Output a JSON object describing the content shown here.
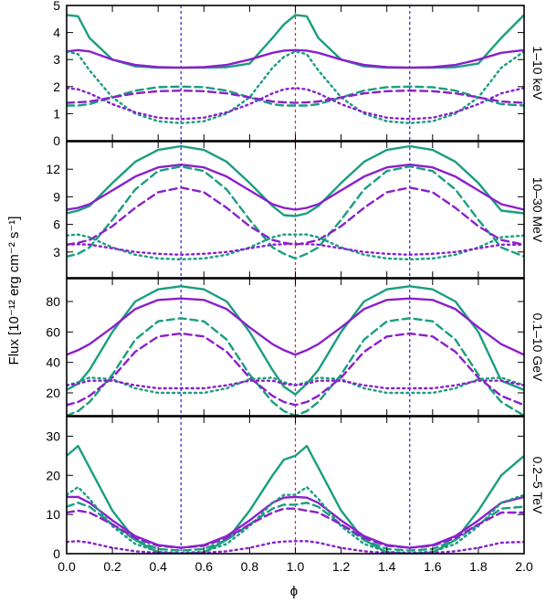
{
  "figure": {
    "ylabel": "Flux [10⁻¹² erg cm⁻² s⁻¹]",
    "xlabel": "ϕ"
  },
  "colors": {
    "green": "#1a9e7f",
    "purple": "#8b20cc",
    "blue_marker": "#2020e0",
    "red_marker": "#e02020"
  },
  "chart_data": [
    {
      "type": "line",
      "panel_label": "1–10 keV",
      "xlim": [
        0,
        2
      ],
      "ylim": [
        0,
        5
      ],
      "yticks": [
        0,
        1,
        2,
        3,
        4,
        5
      ],
      "xticks": [
        0.0,
        0.2,
        0.4,
        0.6,
        0.8,
        1.0,
        1.2,
        1.4,
        1.6,
        1.8,
        2.0
      ],
      "xtick_labels": [],
      "vlines": [
        {
          "x": 0.5,
          "color": "blue"
        },
        {
          "x": 1.0,
          "color": "red"
        },
        {
          "x": 1.5,
          "color": "blue"
        }
      ],
      "x": [
        0.0,
        0.05,
        0.1,
        0.2,
        0.3,
        0.4,
        0.5,
        0.6,
        0.7,
        0.8,
        0.9,
        0.95,
        1.0,
        1.05,
        1.1,
        1.2,
        1.3,
        1.4,
        1.5,
        1.6,
        1.7,
        1.8,
        1.9,
        2.0
      ],
      "series": [
        {
          "color": "green",
          "style": "solid",
          "values": [
            4.65,
            4.6,
            3.8,
            3.0,
            2.75,
            2.7,
            2.7,
            2.7,
            2.72,
            2.85,
            3.8,
            4.3,
            4.65,
            4.6,
            3.8,
            3.0,
            2.75,
            2.7,
            2.7,
            2.7,
            2.72,
            2.85,
            3.8,
            4.65
          ]
        },
        {
          "color": "purple",
          "style": "solid",
          "values": [
            3.3,
            3.35,
            3.3,
            3.0,
            2.8,
            2.72,
            2.7,
            2.72,
            2.8,
            3.0,
            3.25,
            3.33,
            3.35,
            3.33,
            3.25,
            3.0,
            2.8,
            2.72,
            2.7,
            2.72,
            2.8,
            3.0,
            3.25,
            3.35
          ]
        },
        {
          "color": "green",
          "style": "dotted",
          "values": [
            3.3,
            3.2,
            2.6,
            1.6,
            1.0,
            0.72,
            0.65,
            0.72,
            1.0,
            1.6,
            2.7,
            3.1,
            3.3,
            3.2,
            2.6,
            1.6,
            1.0,
            0.72,
            0.65,
            0.72,
            1.0,
            1.6,
            2.7,
            3.3
          ]
        },
        {
          "color": "purple",
          "style": "dotted",
          "values": [
            1.95,
            1.9,
            1.75,
            1.35,
            1.05,
            0.85,
            0.8,
            0.85,
            1.05,
            1.35,
            1.75,
            1.9,
            1.95,
            1.9,
            1.75,
            1.35,
            1.05,
            0.85,
            0.8,
            0.85,
            1.05,
            1.35,
            1.75,
            1.95
          ]
        },
        {
          "color": "green",
          "style": "dashed",
          "values": [
            1.3,
            1.3,
            1.35,
            1.6,
            1.85,
            1.98,
            2.0,
            1.98,
            1.85,
            1.6,
            1.35,
            1.3,
            1.3,
            1.3,
            1.35,
            1.6,
            1.85,
            1.98,
            2.0,
            1.98,
            1.85,
            1.6,
            1.35,
            1.3
          ]
        },
        {
          "color": "purple",
          "style": "dashed",
          "values": [
            1.4,
            1.42,
            1.45,
            1.6,
            1.75,
            1.83,
            1.85,
            1.83,
            1.75,
            1.6,
            1.45,
            1.42,
            1.4,
            1.42,
            1.45,
            1.6,
            1.75,
            1.83,
            1.85,
            1.83,
            1.75,
            1.6,
            1.45,
            1.4
          ]
        }
      ]
    },
    {
      "type": "line",
      "panel_label": "10–30 MeV",
      "xlim": [
        0,
        2
      ],
      "ylim": [
        0.2,
        15
      ],
      "yticks": [
        3,
        6,
        9,
        12
      ],
      "xticks": [
        0.0,
        0.2,
        0.4,
        0.6,
        0.8,
        1.0,
        1.2,
        1.4,
        1.6,
        1.8,
        2.0
      ],
      "xtick_labels": [],
      "vlines": [
        {
          "x": 0.5,
          "color": "blue"
        },
        {
          "x": 1.0,
          "color": "red"
        },
        {
          "x": 1.5,
          "color": "blue"
        }
      ],
      "x": [
        0.0,
        0.05,
        0.1,
        0.2,
        0.3,
        0.4,
        0.5,
        0.6,
        0.7,
        0.8,
        0.9,
        0.95,
        1.0,
        1.05,
        1.1,
        1.2,
        1.3,
        1.4,
        1.5,
        1.6,
        1.7,
        1.8,
        1.9,
        2.0
      ],
      "series": [
        {
          "color": "green",
          "style": "solid",
          "values": [
            7.2,
            7.5,
            8.0,
            10.5,
            12.8,
            14.1,
            14.5,
            14.1,
            12.8,
            10.5,
            8.0,
            7.0,
            6.9,
            7.2,
            8.0,
            10.5,
            12.8,
            14.1,
            14.5,
            14.1,
            12.8,
            10.5,
            7.5,
            7.2
          ]
        },
        {
          "color": "purple",
          "style": "solid",
          "values": [
            7.6,
            7.8,
            8.2,
            9.7,
            11.2,
            12.2,
            12.5,
            12.2,
            11.2,
            9.7,
            8.2,
            7.8,
            7.6,
            7.8,
            8.2,
            9.7,
            11.2,
            12.2,
            12.5,
            12.2,
            11.2,
            9.7,
            8.2,
            7.6
          ]
        },
        {
          "color": "green",
          "style": "dashed",
          "values": [
            2.5,
            2.8,
            3.5,
            6.5,
            9.8,
            11.8,
            12.3,
            11.8,
            9.8,
            6.5,
            3.5,
            2.8,
            2.3,
            2.8,
            3.5,
            6.5,
            9.8,
            11.8,
            12.3,
            11.8,
            9.8,
            6.5,
            3.5,
            2.5
          ]
        },
        {
          "color": "purple",
          "style": "dashed",
          "values": [
            3.8,
            4.0,
            4.3,
            5.8,
            7.8,
            9.5,
            10.0,
            9.5,
            7.8,
            5.8,
            4.3,
            4.0,
            3.8,
            4.0,
            4.3,
            5.8,
            7.8,
            9.5,
            10.0,
            9.5,
            7.8,
            5.8,
            4.3,
            3.8
          ]
        },
        {
          "color": "green",
          "style": "dotted",
          "values": [
            4.8,
            4.9,
            4.6,
            3.5,
            2.7,
            2.3,
            2.2,
            2.3,
            2.7,
            3.5,
            4.6,
            4.9,
            4.9,
            4.9,
            4.6,
            3.5,
            2.7,
            2.3,
            2.2,
            2.3,
            2.7,
            3.5,
            4.6,
            4.8
          ]
        },
        {
          "color": "purple",
          "style": "dotted",
          "values": [
            3.8,
            3.85,
            3.8,
            3.4,
            3.0,
            2.8,
            2.7,
            2.8,
            3.0,
            3.4,
            3.8,
            3.85,
            3.9,
            3.85,
            3.8,
            3.4,
            3.0,
            2.8,
            2.7,
            2.8,
            3.0,
            3.4,
            3.8,
            3.8
          ]
        }
      ]
    },
    {
      "type": "line",
      "panel_label": "0.1–10 GeV",
      "xlim": [
        0,
        2
      ],
      "ylim": [
        5,
        95
      ],
      "yticks": [
        20,
        40,
        60,
        80
      ],
      "xticks": [
        0.0,
        0.2,
        0.4,
        0.6,
        0.8,
        1.0,
        1.2,
        1.4,
        1.6,
        1.8,
        2.0
      ],
      "xtick_labels": [],
      "vlines": [
        {
          "x": 0.5,
          "color": "blue"
        },
        {
          "x": 1.0,
          "color": "red"
        },
        {
          "x": 1.5,
          "color": "blue"
        }
      ],
      "x": [
        0.0,
        0.05,
        0.1,
        0.2,
        0.3,
        0.4,
        0.5,
        0.6,
        0.7,
        0.8,
        0.9,
        0.95,
        1.0,
        1.05,
        1.1,
        1.2,
        1.3,
        1.4,
        1.5,
        1.6,
        1.7,
        1.8,
        1.9,
        2.0
      ],
      "series": [
        {
          "color": "green",
          "style": "solid",
          "values": [
            22,
            26,
            35,
            60,
            80,
            88,
            90,
            88,
            80,
            60,
            35,
            24,
            19,
            26,
            35,
            60,
            80,
            88,
            90,
            88,
            80,
            60,
            28,
            22
          ]
        },
        {
          "color": "purple",
          "style": "solid",
          "values": [
            45,
            48,
            52,
            63,
            75,
            81,
            82,
            81,
            75,
            63,
            52,
            48,
            45,
            48,
            52,
            63,
            75,
            81,
            82,
            81,
            75,
            63,
            52,
            45
          ]
        },
        {
          "color": "green",
          "style": "dashed",
          "values": [
            5,
            8,
            14,
            32,
            55,
            67,
            69,
            67,
            55,
            32,
            14,
            8,
            5,
            8,
            14,
            32,
            55,
            67,
            69,
            67,
            55,
            32,
            14,
            5
          ]
        },
        {
          "color": "purple",
          "style": "dashed",
          "values": [
            12,
            14,
            18,
            30,
            47,
            57,
            59,
            57,
            47,
            30,
            18,
            14,
            12,
            14,
            18,
            30,
            47,
            57,
            59,
            57,
            47,
            30,
            18,
            12
          ]
        },
        {
          "color": "green",
          "style": "dotted",
          "values": [
            25,
            27,
            30,
            29,
            23,
            20,
            20,
            20,
            23,
            29,
            30,
            27,
            25,
            27,
            30,
            29,
            23,
            20,
            20,
            20,
            23,
            29,
            30,
            25
          ]
        },
        {
          "color": "purple",
          "style": "dotted",
          "values": [
            25,
            26,
            28,
            28,
            25,
            23,
            23,
            23,
            25,
            28,
            28,
            26,
            25,
            26,
            28,
            28,
            25,
            23,
            23,
            23,
            25,
            28,
            28,
            25
          ]
        }
      ]
    },
    {
      "type": "line",
      "panel_label": "0.2–5 TeV",
      "xlim": [
        0,
        2
      ],
      "ylim": [
        0,
        35
      ],
      "yticks": [
        0,
        10,
        20,
        30
      ],
      "xticks": [
        0.0,
        0.2,
        0.4,
        0.6,
        0.8,
        1.0,
        1.2,
        1.4,
        1.6,
        1.8,
        2.0
      ],
      "xtick_labels": [
        "0.0",
        "0.2",
        "0.4",
        "0.6",
        "0.8",
        "1.0",
        "1.2",
        "1.4",
        "1.6",
        "1.8",
        "2.0"
      ],
      "vlines": [
        {
          "x": 0.5,
          "color": "blue"
        },
        {
          "x": 1.0,
          "color": "red"
        },
        {
          "x": 1.5,
          "color": "blue"
        }
      ],
      "x": [
        0.0,
        0.05,
        0.1,
        0.2,
        0.3,
        0.4,
        0.5,
        0.6,
        0.7,
        0.8,
        0.9,
        0.95,
        1.0,
        1.05,
        1.1,
        1.2,
        1.3,
        1.4,
        1.5,
        1.6,
        1.7,
        1.8,
        1.9,
        2.0
      ],
      "series": [
        {
          "color": "green",
          "style": "solid",
          "values": [
            25,
            27.5,
            22,
            11,
            3.5,
            0.3,
            0,
            0.3,
            3.5,
            11,
            20,
            24,
            25,
            27.5,
            22,
            11,
            3.5,
            0.3,
            0,
            0.3,
            3.5,
            11,
            20,
            25
          ]
        },
        {
          "color": "purple",
          "style": "solid",
          "values": [
            14.5,
            14.5,
            13,
            8.5,
            4.5,
            2.2,
            1.5,
            2.2,
            4.5,
            8.5,
            13,
            14.3,
            14.5,
            14.3,
            13,
            8.5,
            4.5,
            2.2,
            1.5,
            2.2,
            4.5,
            8.5,
            13,
            14.5
          ]
        },
        {
          "color": "green",
          "style": "dotted",
          "values": [
            15,
            17,
            14,
            7,
            2.5,
            0.5,
            0.2,
            0.5,
            2.5,
            7,
            13,
            15,
            15,
            17,
            14,
            7,
            2.5,
            0.5,
            0.2,
            0.5,
            2.5,
            7,
            13,
            15
          ]
        },
        {
          "color": "green",
          "style": "dashed",
          "values": [
            12,
            13,
            12,
            7.5,
            3.5,
            1.2,
            0.8,
            1.2,
            3.5,
            7.5,
            11.5,
            12.5,
            12.5,
            13,
            12,
            7.5,
            3.5,
            1.2,
            0.8,
            1.2,
            3.5,
            7.5,
            11.5,
            12
          ]
        },
        {
          "color": "purple",
          "style": "dashed",
          "values": [
            10.5,
            11,
            10.5,
            7.5,
            4,
            2,
            1.5,
            2,
            4,
            7.5,
            10.5,
            11.5,
            11.5,
            11,
            10.5,
            7.5,
            4,
            2,
            1.5,
            2,
            4,
            7.5,
            10.5,
            10.5
          ]
        },
        {
          "color": "purple",
          "style": "dotted",
          "values": [
            3,
            3.2,
            2.8,
            1.5,
            0.6,
            0.2,
            0.1,
            0.2,
            0.6,
            1.5,
            2.8,
            3.1,
            3.2,
            3.2,
            2.8,
            1.5,
            0.6,
            0.2,
            0.1,
            0.2,
            0.6,
            1.5,
            2.8,
            3
          ]
        }
      ]
    }
  ]
}
